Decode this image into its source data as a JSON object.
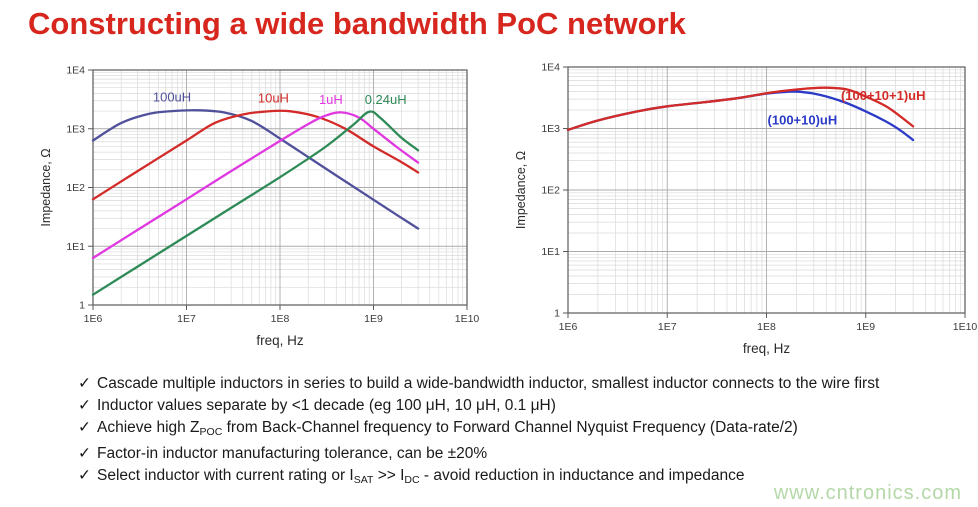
{
  "title": "Constructing a wide bandwidth PoC network",
  "title_color": "#d7261d",
  "watermark": "www.cntronics.com",
  "bullets": [
    {
      "check": "✓",
      "segments": [
        {
          "t": "Cascade multiple inductors in series to build a wide-bandwidth inductor, smallest inductor connects to the wire first"
        }
      ]
    },
    {
      "check": "✓",
      "segments": [
        {
          "t": "Inductor values separate by <1 decade (eg 100 μH, 10 μH, 0.1 μH)"
        }
      ]
    },
    {
      "check": "✓",
      "segments": [
        {
          "t": "Achieve high Z"
        },
        {
          "t": "POC",
          "sub": true
        },
        {
          "t": " from Back-Channel frequency to Forward Channel Nyquist Frequency (Data-rate/2)"
        }
      ]
    },
    {
      "check": "✓",
      "segments": [
        {
          "t": "Factor-in inductor manufacturing tolerance, can be ±20%"
        }
      ]
    },
    {
      "check": "✓",
      "segments": [
        {
          "t": "Select inductor with current rating or I"
        },
        {
          "t": "SAT",
          "sub": true
        },
        {
          "t": " >> I"
        },
        {
          "t": "DC",
          "sub": true
        },
        {
          "t": " - avoid reduction in inductance and impedance"
        }
      ]
    }
  ],
  "chart_data": [
    {
      "type": "line",
      "name": "individual-inductor-impedance",
      "xlabel": "freq, Hz",
      "ylabel": "Impedance, Ω",
      "xscale": "log",
      "yscale": "log",
      "xlim": [
        1000000.0,
        10000000000.0
      ],
      "ylim": [
        1,
        10000.0
      ],
      "xtick_labels": [
        "1E6",
        "1E7",
        "1E8",
        "1E9",
        "1E10"
      ],
      "ytick_labels": [
        "1",
        "1E1",
        "1E2",
        "1E3",
        "1E4"
      ],
      "grid": "log-major-minor",
      "legend_position": "inline-curve-labels",
      "label_weight": "normal",
      "series": [
        {
          "name": "100uH",
          "color": "#50509b",
          "label_xy": [
            7000000.0,
            3400
          ],
          "points": [
            [
              1000000.0,
              630
            ],
            [
              2000000.0,
              1250
            ],
            [
              4000000.0,
              1800
            ],
            [
              7000000.0,
              2000
            ],
            [
              13000000.0,
              2060
            ],
            [
              25000000.0,
              1900
            ],
            [
              50000000.0,
              1350
            ],
            [
              100000000.0,
              680
            ],
            [
              200000000.0,
              330
            ],
            [
              400000000.0,
              160
            ],
            [
              800000000.0,
              78
            ],
            [
              1600000000.0,
              38
            ],
            [
              3000000000.0,
              20
            ]
          ]
        },
        {
          "name": "10uH",
          "color": "#d32b28",
          "label_xy": [
            85000000.0,
            3300
          ],
          "points": [
            [
              1000000.0,
              63
            ],
            [
              3000000.0,
              190
            ],
            [
              10000000.0,
              630
            ],
            [
              20000000.0,
              1250
            ],
            [
              40000000.0,
              1750
            ],
            [
              80000000.0,
              2000
            ],
            [
              130000000.0,
              1980
            ],
            [
              250000000.0,
              1600
            ],
            [
              500000000.0,
              1000
            ],
            [
              1000000000.0,
              500
            ],
            [
              2000000000.0,
              270
            ],
            [
              3000000000.0,
              180
            ]
          ]
        },
        {
          "name": "1uH",
          "color": "#e038e0",
          "label_xy": [
            350000000.0,
            3100
          ],
          "points": [
            [
              1000000.0,
              6.3
            ],
            [
              3000000.0,
              19
            ],
            [
              10000000.0,
              63
            ],
            [
              30000000.0,
              190
            ],
            [
              100000000.0,
              620
            ],
            [
              200000000.0,
              1200
            ],
            [
              300000000.0,
              1650
            ],
            [
              450000000.0,
              1900
            ],
            [
              700000000.0,
              1550
            ],
            [
              1000000000.0,
              1000
            ],
            [
              1800000000.0,
              480
            ],
            [
              3000000000.0,
              265
            ]
          ]
        },
        {
          "name": "0.24uH",
          "color": "#2e8b57",
          "label_xy": [
            1350000000.0,
            3100
          ],
          "points": [
            [
              1000000.0,
              1.5
            ],
            [
              3000000.0,
              4.5
            ],
            [
              10000000.0,
              15
            ],
            [
              30000000.0,
              45
            ],
            [
              100000000.0,
              150
            ],
            [
              300000000.0,
              480
            ],
            [
              600000000.0,
              1150
            ],
            [
              900000000.0,
              1950
            ],
            [
              1200000000.0,
              1500
            ],
            [
              2000000000.0,
              700
            ],
            [
              3000000000.0,
              430
            ]
          ]
        }
      ]
    },
    {
      "type": "line",
      "name": "cascaded-poc-network-impedance",
      "xlabel": "freq, Hz",
      "ylabel": "Impedance, Ω",
      "xscale": "log",
      "yscale": "log",
      "xlim": [
        1000000.0,
        10000000000.0
      ],
      "ylim": [
        1,
        10000.0
      ],
      "xtick_labels": [
        "1E6",
        "1E7",
        "1E8",
        "1E9",
        "1E10"
      ],
      "ytick_labels": [
        "1",
        "1E1",
        "1E2",
        "1E3",
        "1E4"
      ],
      "grid": "log-major-minor",
      "legend_position": "inline-curve-labels",
      "label_weight": "bold",
      "series": [
        {
          "name": "(100+10)uH",
          "color": "#2b3bc8",
          "label_xy": [
            230000000.0,
            1350
          ],
          "points": [
            [
              1000000.0,
              950
            ],
            [
              2000000.0,
              1350
            ],
            [
              5000000.0,
              1900
            ],
            [
              10000000.0,
              2300
            ],
            [
              20000000.0,
              2600
            ],
            [
              50000000.0,
              3100
            ],
            [
              100000000.0,
              3700
            ],
            [
              160000000.0,
              3950
            ],
            [
              220000000.0,
              3950
            ],
            [
              350000000.0,
              3500
            ],
            [
              600000000.0,
              2700
            ],
            [
              1000000000.0,
              1900
            ],
            [
              1600000000.0,
              1300
            ],
            [
              2200000000.0,
              950
            ],
            [
              3000000000.0,
              650
            ]
          ]
        },
        {
          "name": "(100+10+1)uH",
          "color": "#d32b28",
          "label_xy": [
            1500000000.0,
            3400
          ],
          "points": [
            [
              1000000.0,
              950
            ],
            [
              2000000.0,
              1350
            ],
            [
              5000000.0,
              1900
            ],
            [
              10000000.0,
              2300
            ],
            [
              20000000.0,
              2600
            ],
            [
              50000000.0,
              3100
            ],
            [
              100000000.0,
              3750
            ],
            [
              160000000.0,
              4150
            ],
            [
              250000000.0,
              4450
            ],
            [
              400000000.0,
              4600
            ],
            [
              650000000.0,
              4300
            ],
            [
              1000000000.0,
              3300
            ],
            [
              1600000000.0,
              2300
            ],
            [
              2200000000.0,
              1600
            ],
            [
              3000000000.0,
              1080
            ]
          ]
        }
      ]
    }
  ]
}
